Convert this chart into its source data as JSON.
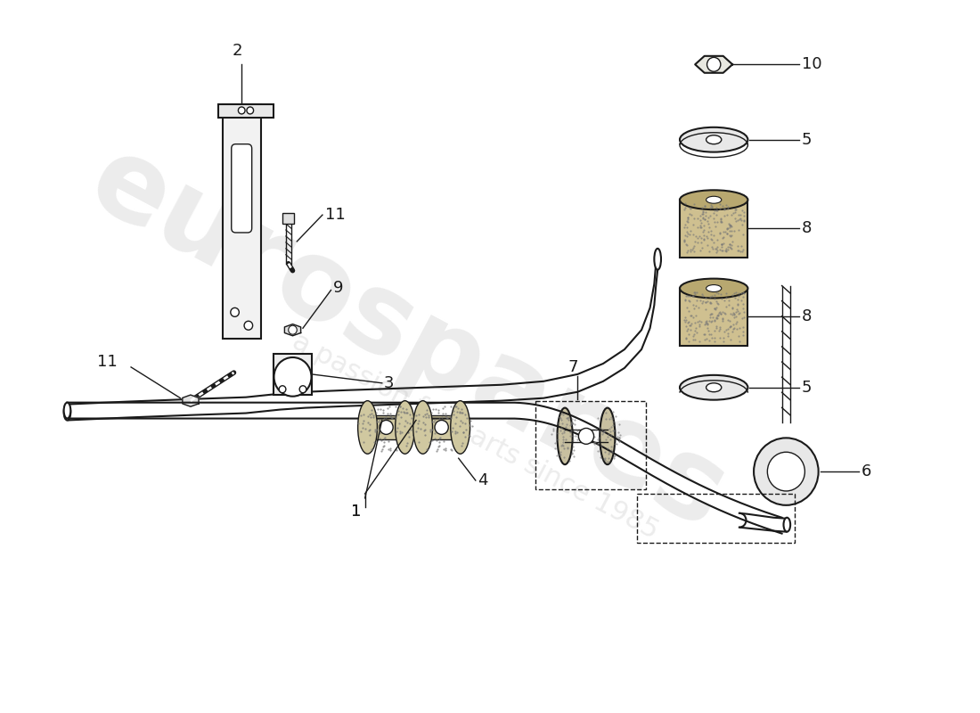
{
  "background_color": "#ffffff",
  "line_color": "#1a1a1a",
  "watermark_text1": "eurospares",
  "watermark_text2": "a passion for parts since 1985",
  "figsize": [
    11.0,
    8.0
  ],
  "dpi": 100
}
